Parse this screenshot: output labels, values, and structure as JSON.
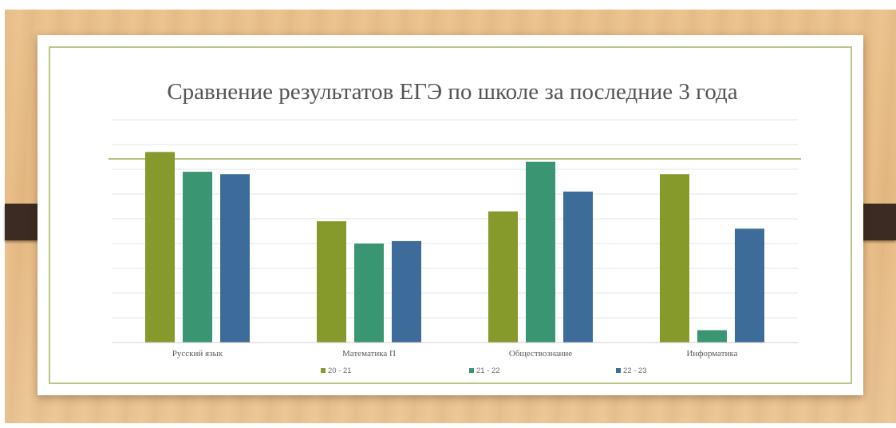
{
  "chart_data": {
    "type": "bar",
    "title": "Сравнение результатов ЕГЭ по школе за последние 3 года",
    "categories": [
      "Русский язык",
      "Математика П",
      "Обществознание",
      "Информатика"
    ],
    "series": [
      {
        "name": "20 - 21",
        "color": "#869a2c",
        "values": [
          77,
          49,
          53,
          68
        ]
      },
      {
        "name": "21 - 22",
        "color": "#3a9572",
        "values": [
          69,
          40,
          73,
          5
        ]
      },
      {
        "name": "22 - 23",
        "color": "#3d6c9a",
        "values": [
          68,
          41,
          61,
          46
        ]
      }
    ],
    "ylim": [
      0,
      90
    ],
    "grid": true,
    "legend": "bottom"
  }
}
